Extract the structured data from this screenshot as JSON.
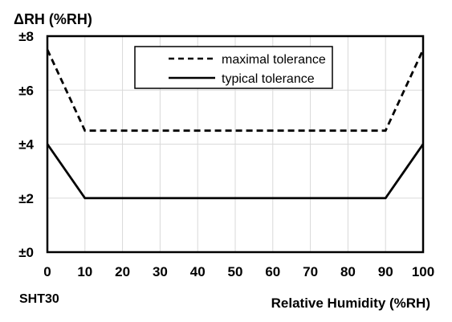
{
  "chart_data": {
    "type": "line",
    "ylabel": "ΔRH (%RH)",
    "xlabel": "Relative Humidity (%RH)",
    "sensor_label": "SHT30",
    "xlim": [
      0,
      100
    ],
    "ylim": [
      0,
      8
    ],
    "x_ticks": [
      0,
      10,
      20,
      30,
      40,
      50,
      60,
      70,
      80,
      90,
      100
    ],
    "x_tick_labels": [
      "0",
      "10",
      "20",
      "30",
      "40",
      "50",
      "60",
      "70",
      "80",
      "90",
      "100"
    ],
    "y_ticks": [
      0,
      2,
      4,
      6,
      8
    ],
    "y_tick_labels": [
      "±0",
      "±2",
      "±4",
      "±6",
      "±8"
    ],
    "grid": true,
    "legend_position": "top-right",
    "series": [
      {
        "name": "maximal tolerance",
        "style": "dashed",
        "x": [
          0,
          10,
          90,
          100
        ],
        "y": [
          7.5,
          4.5,
          4.5,
          7.5
        ]
      },
      {
        "name": "typical tolerance",
        "style": "solid",
        "x": [
          0,
          10,
          90,
          100
        ],
        "y": [
          4,
          2,
          2,
          4
        ]
      }
    ],
    "colors": {
      "line": "#000000",
      "grid": "#d9d9d9",
      "frame": "#000000"
    }
  }
}
